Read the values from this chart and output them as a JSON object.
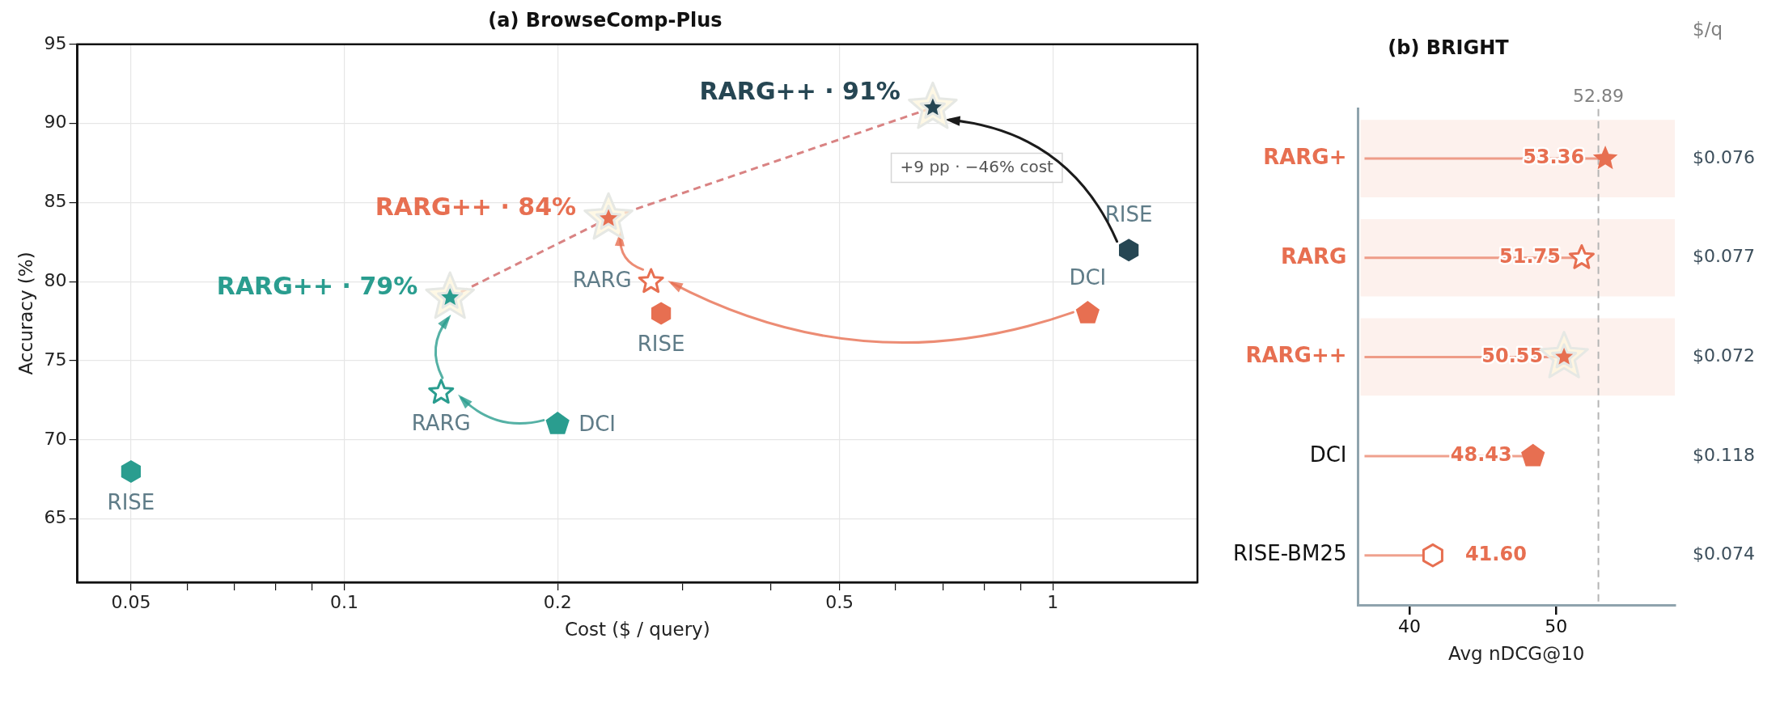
{
  "chart_data": [
    {
      "type": "scatter",
      "title": "(a) BrowseComp-Plus",
      "xlabel": "Cost ($ / query)",
      "ylabel": "Accuracy (%)",
      "log": "x",
      "xlim": [
        0.042,
        1.6
      ],
      "xticks": [
        0.05,
        {
          "value": 0.06,
          "label": null
        },
        {
          "value": 0.07,
          "label": null
        },
        {
          "value": 0.08,
          "label": null
        },
        {
          "value": 0.09,
          "label": null
        },
        0.1,
        0.2,
        {
          "value": 0.3,
          "label": null
        },
        {
          "value": 0.4,
          "label": null
        },
        0.5,
        {
          "value": 0.6,
          "label": null
        },
        {
          "value": 0.7,
          "label": null
        },
        {
          "value": 0.8,
          "label": null
        },
        {
          "value": 0.9,
          "label": null
        },
        1
      ],
      "ylim": [
        61,
        95
      ],
      "yticks": [
        65,
        70,
        75,
        80,
        85,
        90,
        95
      ],
      "grid": true,
      "annotations": [
        "+9 pp · −46% cost"
      ],
      "series": [
        {
          "name": "RISE",
          "colors": [
            "#2a9d8f",
            "#e76f51",
            "#264653"
          ],
          "x": [
            0.05,
            0.28,
            1.28
          ],
          "values": [
            68,
            78,
            82
          ]
        },
        {
          "name": "DCI",
          "colors": [
            "#2a9d8f",
            "#e76f51",
            null
          ],
          "x": [
            0.2,
            1.12,
            null
          ],
          "values": [
            71,
            78,
            null
          ]
        },
        {
          "name": "RARG",
          "marker": "star",
          "colors": [
            "#2a9d8f",
            "#e76f51",
            null
          ],
          "x": [
            0.137,
            0.271,
            null
          ],
          "values": [
            73,
            80,
            null
          ]
        },
        {
          "type": "line",
          "line_style": "dashed",
          "marker": "star",
          "color": "#d98383",
          "colors": [
            "#2a9d8f",
            "#e76f51",
            "#264653"
          ],
          "x": [
            0.141,
            0.236,
            0.677
          ],
          "values": [
            79,
            84,
            91
          ],
          "value_labels": [
            "RARG++ · 79%",
            "RARG++ · 84%",
            "RARG++ · 91%"
          ]
        }
      ]
    },
    {
      "type": "lollipop",
      "orientation": "horizontal",
      "title": "(b) BRIGHT",
      "xlabel": "Avg nDCG@10",
      "y2label": "$/q",
      "categories": [
        "RARG+",
        "RARG",
        "RARG++",
        "DCI",
        "RISE-BM25"
      ],
      "xlim": [
        36.5,
        58.1
      ],
      "xticks": [
        40,
        50
      ],
      "ref_lines": [
        {
          "axis": "x",
          "value": 52.89,
          "label": "52.89",
          "color": "#b5b5b5",
          "line_style": "dashed"
        }
      ],
      "bands": [
        {
          "axis": "y",
          "from": "RARG+",
          "to": "RARG+",
          "color": "#fdf1ed"
        },
        {
          "axis": "y",
          "from": "RARG",
          "to": "RARG",
          "color": "#fdf1ed"
        },
        {
          "axis": "y",
          "from": "RARG++",
          "to": "RARG++",
          "color": "#fdf1ed"
        }
      ],
      "annotations": [
        "$0.076",
        "$0.077",
        "$0.072",
        "$0.118",
        "$0.074"
      ],
      "series": [
        {
          "marker": "star",
          "color": "#e76f51",
          "values": [
            53.36,
            null,
            null,
            null,
            null
          ],
          "value_labels": [
            "53.36",
            null,
            null,
            null,
            null
          ]
        },
        {
          "marker": "star",
          "color": "#e76f51",
          "values": [
            null,
            51.75,
            null,
            null,
            null
          ],
          "value_labels": [
            null,
            "51.75",
            null,
            null,
            null
          ]
        },
        {
          "marker": "star",
          "color": "#e76f51",
          "values": [
            null,
            null,
            50.55,
            null,
            null
          ],
          "value_labels": [
            null,
            null,
            "50.55",
            null,
            null
          ]
        },
        {
          "color": "#e76f51",
          "values": [
            null,
            null,
            null,
            48.43,
            null
          ],
          "value_labels": [
            null,
            null,
            null,
            "48.43",
            null
          ]
        },
        {
          "color": "#e76f51",
          "values": [
            null,
            null,
            null,
            null,
            41.6
          ],
          "value_labels": [
            null,
            null,
            null,
            null,
            "41.60"
          ]
        }
      ]
    }
  ]
}
